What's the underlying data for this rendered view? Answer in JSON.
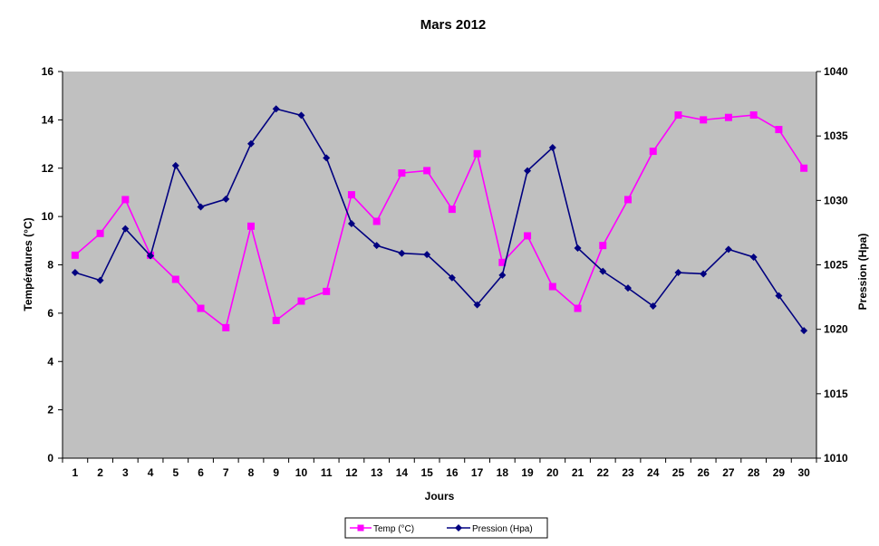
{
  "chart_data": {
    "type": "line",
    "title": "Mars 2012",
    "xlabel": "Jours",
    "ylabel_left": "Températures  (°C)",
    "ylabel_right": "Pression (Hpa)",
    "categories": [
      "1",
      "2",
      "3",
      "4",
      "5",
      "6",
      "7",
      "8",
      "9",
      "10",
      "11",
      "12",
      "13",
      "14",
      "15",
      "16",
      "17",
      "18",
      "19",
      "20",
      "21",
      "22",
      "23",
      "24",
      "25",
      "26",
      "27",
      "28",
      "29",
      "30"
    ],
    "ylim_left": [
      0,
      16
    ],
    "yticks_left": [
      "0",
      "2",
      "4",
      "6",
      "8",
      "10",
      "12",
      "14",
      "16"
    ],
    "ylim_right": [
      1010,
      1040
    ],
    "yticks_right": [
      "1010",
      "1015",
      "1020",
      "1025",
      "1030",
      "1035",
      "1040"
    ],
    "grid": false,
    "plot_background": "#C0C0C0",
    "legend_position": "bottom",
    "series": [
      {
        "name": "Temp (°C)",
        "axis": "left",
        "color": "#FF00FF",
        "marker": "square",
        "values": [
          8.4,
          9.3,
          10.7,
          8.4,
          7.4,
          6.2,
          5.4,
          9.6,
          5.7,
          6.5,
          6.9,
          10.9,
          9.8,
          11.8,
          11.9,
          10.3,
          12.6,
          8.1,
          9.2,
          7.1,
          6.2,
          8.8,
          10.7,
          12.7,
          14.2,
          14.0,
          14.1,
          14.2,
          13.6,
          12.0
        ]
      },
      {
        "name": "Pression (Hpa)",
        "axis": "right",
        "color": "#000080",
        "marker": "diamond",
        "values": [
          1024.4,
          1023.8,
          1027.8,
          1025.7,
          1032.7,
          1029.5,
          1030.1,
          1034.4,
          1037.1,
          1036.6,
          1033.3,
          1028.2,
          1026.5,
          1025.9,
          1025.8,
          1024.0,
          1021.9,
          1024.2,
          1032.3,
          1034.1,
          1026.3,
          1024.5,
          1023.2,
          1021.8,
          1024.4,
          1024.3,
          1026.2,
          1025.6,
          1022.6,
          1019.9
        ]
      }
    ]
  }
}
